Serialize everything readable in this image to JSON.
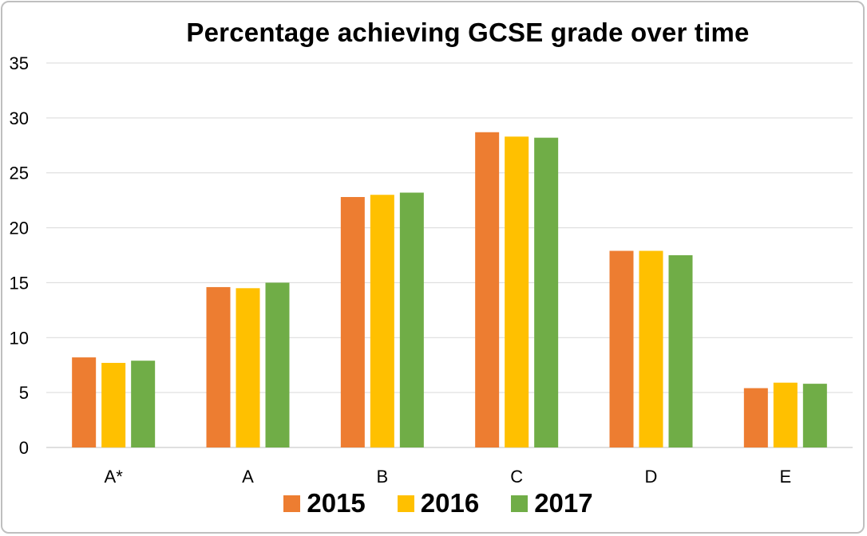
{
  "chart_data": {
    "type": "bar",
    "title": "Percentage achieving GCSE grade over time",
    "xlabel": "",
    "ylabel": "",
    "categories": [
      "A*",
      "A",
      "B",
      "C",
      "D",
      "E"
    ],
    "series": [
      {
        "name": "2015",
        "color": "#ed7d31",
        "values": [
          8.2,
          14.6,
          22.8,
          28.7,
          17.9,
          5.4
        ]
      },
      {
        "name": "2016",
        "color": "#ffc000",
        "values": [
          7.7,
          14.5,
          23.0,
          28.3,
          17.9,
          5.9
        ]
      },
      {
        "name": "2017",
        "color": "#70ad47",
        "values": [
          7.9,
          15.0,
          23.2,
          28.2,
          17.5,
          5.8
        ]
      }
    ],
    "ylim": [
      0,
      35
    ],
    "yticks": [
      "0",
      "5",
      "10",
      "15",
      "20",
      "25",
      "30",
      "35"
    ],
    "grid": true,
    "legend_position": "bottom"
  }
}
